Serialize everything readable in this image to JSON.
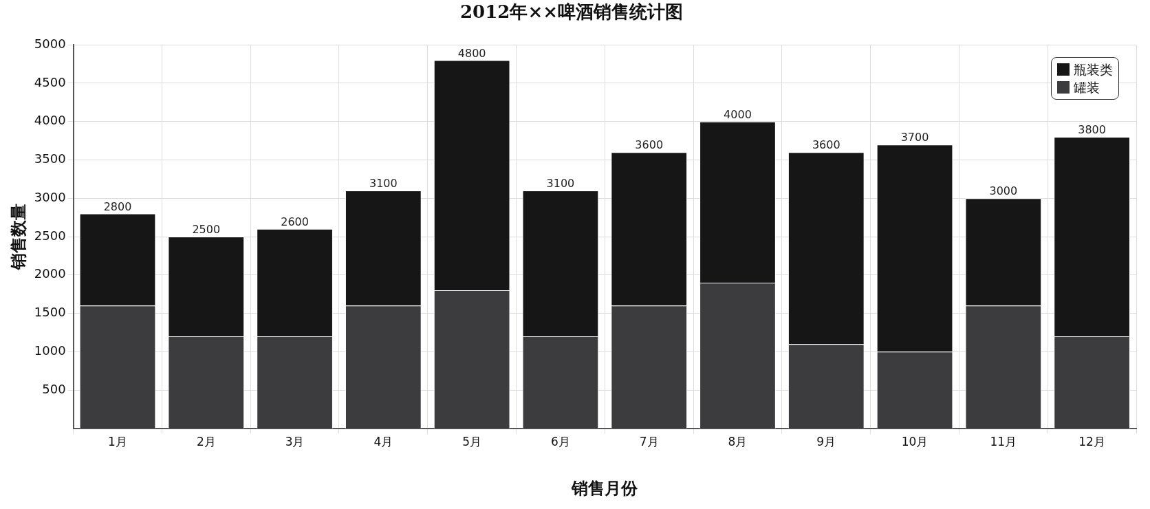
{
  "chart_data": {
    "type": "bar",
    "title": "2012年××啤酒销售统计图",
    "xlabel": "销售月份",
    "ylabel": "销售数量",
    "categories": [
      "1月",
      "2月",
      "3月",
      "4月",
      "5月",
      "6月",
      "7月",
      "8月",
      "9月",
      "10月",
      "11月",
      "12月"
    ],
    "stacked": true,
    "series": [
      {
        "name": "罐装",
        "color": "#3c3c3e",
        "values": [
          1600,
          1200,
          1200,
          1600,
          1800,
          1200,
          1600,
          1900,
          1100,
          1000,
          1600,
          1200
        ]
      },
      {
        "name": "瓶装类",
        "color": "#161616",
        "values": [
          1200,
          1300,
          1400,
          1500,
          3000,
          1900,
          2000,
          2100,
          2500,
          2700,
          1400,
          2600
        ]
      }
    ],
    "totals": [
      "2800",
      "2500",
      "2600",
      "3100",
      "4800",
      "3100",
      "3600",
      "4000",
      "3600",
      "3700",
      "3000",
      "3800"
    ],
    "ylim": [
      0,
      5000
    ],
    "yticks": [
      500,
      1000,
      1500,
      2000,
      2500,
      3000,
      3500,
      4000,
      4500,
      5000
    ],
    "grid": true,
    "legend": "top right"
  }
}
